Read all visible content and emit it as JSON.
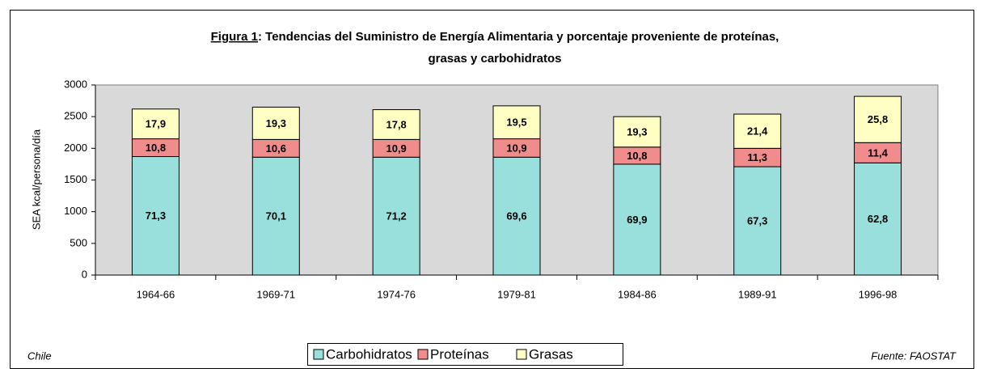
{
  "chart_data": {
    "type": "stacked_bar",
    "title_prefix": "Figura 1",
    "title": [
      ": Tendencias del Suministro de Energía Alimentaria y porcentaje proveniente de proteínas,",
      "grasas y carbohidratos"
    ],
    "y_label": "SEA kcal/persona/día",
    "categories": [
      "1964-66",
      "1969-71",
      "1974-76",
      "1979-81",
      "1984-86",
      "1989-91",
      "1996-98"
    ],
    "series": [
      {
        "name": "Carbohidratos",
        "color": "#99e0dc",
        "values": [
          1870,
          1860,
          1860,
          1860,
          1750,
          1710,
          1770
        ],
        "percent_values": [
          71.3,
          70.1,
          71.2,
          69.6,
          69.9,
          67.3,
          62.8
        ],
        "percent_labels": [
          "71,3",
          "70,1",
          "71,2",
          "69,6",
          "69,9",
          "67,3",
          "62,8"
        ]
      },
      {
        "name": "Proteínas",
        "color": "#f08c8c",
        "values": [
          280,
          280,
          280,
          290,
          270,
          290,
          320
        ],
        "percent_values": [
          10.8,
          10.6,
          10.9,
          10.9,
          10.8,
          11.3,
          11.4
        ],
        "percent_labels": [
          "10,8",
          "10,6",
          "10,9",
          "10,9",
          "10,8",
          "11,3",
          "11,4"
        ]
      },
      {
        "name": "Grasas",
        "color": "#ffffc4",
        "values": [
          470,
          510,
          470,
          520,
          480,
          540,
          730
        ],
        "percent_values": [
          17.9,
          19.3,
          17.8,
          19.5,
          19.3,
          21.4,
          25.8
        ],
        "percent_labels": [
          "17,9",
          "19,3",
          "17,8",
          "19,5",
          "19,3",
          "21,4",
          "25,8"
        ]
      }
    ],
    "ylim": [
      0,
      3000
    ],
    "yticks": [
      0,
      500,
      1000,
      1500,
      2000,
      2500,
      3000
    ],
    "plot_background": "#d9d9d9",
    "note_left": "Chile",
    "note_right": "Fuente: FAOSTAT"
  }
}
